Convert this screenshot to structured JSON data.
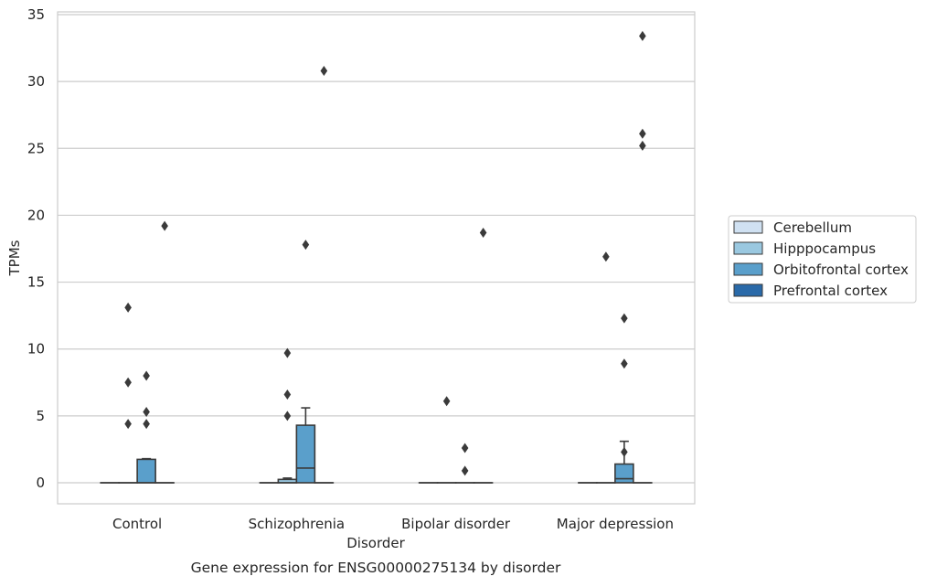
{
  "chart_data": {
    "type": "box",
    "title": "",
    "caption": "Gene expression for ENSG00000275134 by disorder",
    "xlabel": "Disorder",
    "ylabel": "TPMs",
    "categories": [
      "Control",
      "Schizophrenia",
      "Bipolar disorder",
      "Major depression"
    ],
    "yticks": [
      0,
      5,
      10,
      15,
      20,
      25,
      30,
      35
    ],
    "ylim": [
      -1.6,
      35.3
    ],
    "grid": "horizontal",
    "legend_position": "outside-right",
    "series": [
      {
        "name": "Cerebellum",
        "color": "#d0e1f2",
        "boxes": [
          {
            "q1": 0,
            "median": 0,
            "q3": 0,
            "whisker_low": 0,
            "whisker_high": 0,
            "outliers": []
          },
          {
            "q1": 0,
            "median": 0,
            "q3": 0,
            "whisker_low": 0,
            "whisker_high": 0,
            "outliers": []
          },
          {
            "q1": 0,
            "median": 0,
            "q3": 0,
            "whisker_low": 0,
            "whisker_high": 0,
            "outliers": []
          },
          {
            "q1": 0,
            "median": 0,
            "q3": 0,
            "whisker_low": 0,
            "whisker_high": 0,
            "outliers": []
          }
        ]
      },
      {
        "name": "Hipppocampus",
        "color": "#9ac8e0",
        "boxes": [
          {
            "q1": 0,
            "median": 0,
            "q3": 0,
            "whisker_low": 0,
            "whisker_high": 0,
            "outliers": [
              13.1,
              7.5,
              4.4
            ]
          },
          {
            "q1": 0,
            "median": 0,
            "q3": 0.25,
            "whisker_low": 0,
            "whisker_high": 0.35,
            "outliers": [
              9.7,
              6.6,
              5.0
            ]
          },
          {
            "q1": 0,
            "median": 0,
            "q3": 0,
            "whisker_low": 0,
            "whisker_high": 0,
            "outliers": [
              6.1
            ]
          },
          {
            "q1": 0,
            "median": 0,
            "q3": 0,
            "whisker_low": 0,
            "whisker_high": 0,
            "outliers": [
              16.9
            ]
          }
        ]
      },
      {
        "name": "Orbitofrontal cortex",
        "color": "#5a9fcb",
        "boxes": [
          {
            "q1": 0,
            "median": 0,
            "q3": 1.75,
            "whisker_low": 0,
            "whisker_high": 1.8,
            "outliers": [
              8.0,
              5.3,
              4.4
            ]
          },
          {
            "q1": 0,
            "median": 1.1,
            "q3": 4.3,
            "whisker_low": 0,
            "whisker_high": 5.6,
            "outliers": [
              17.8
            ]
          },
          {
            "q1": 0,
            "median": 0,
            "q3": 0,
            "whisker_low": 0,
            "whisker_high": 0,
            "outliers": [
              2.6,
              0.9
            ]
          },
          {
            "q1": 0,
            "median": 0.3,
            "q3": 1.4,
            "whisker_low": 0,
            "whisker_high": 3.1,
            "outliers": [
              8.9,
              12.3,
              2.3
            ]
          }
        ]
      },
      {
        "name": "Prefrontal cortex",
        "color": "#2a6aa9",
        "boxes": [
          {
            "q1": 0,
            "median": 0,
            "q3": 0,
            "whisker_low": 0,
            "whisker_high": 0,
            "outliers": [
              19.2
            ]
          },
          {
            "q1": 0,
            "median": 0,
            "q3": 0,
            "whisker_low": 0,
            "whisker_high": 0,
            "outliers": [
              30.8
            ]
          },
          {
            "q1": 0,
            "median": 0,
            "q3": 0,
            "whisker_low": 0,
            "whisker_high": 0,
            "outliers": [
              18.7
            ]
          },
          {
            "q1": 0,
            "median": 0,
            "q3": 0,
            "whisker_low": 0,
            "whisker_high": 0,
            "outliers": [
              33.4,
              26.1,
              25.2
            ]
          }
        ]
      }
    ]
  },
  "style": {
    "grid_color": "#cccccc",
    "frame_color": "#cccccc",
    "line_color": "#3a3a3a",
    "outlier_color": "#3a3a3a"
  }
}
